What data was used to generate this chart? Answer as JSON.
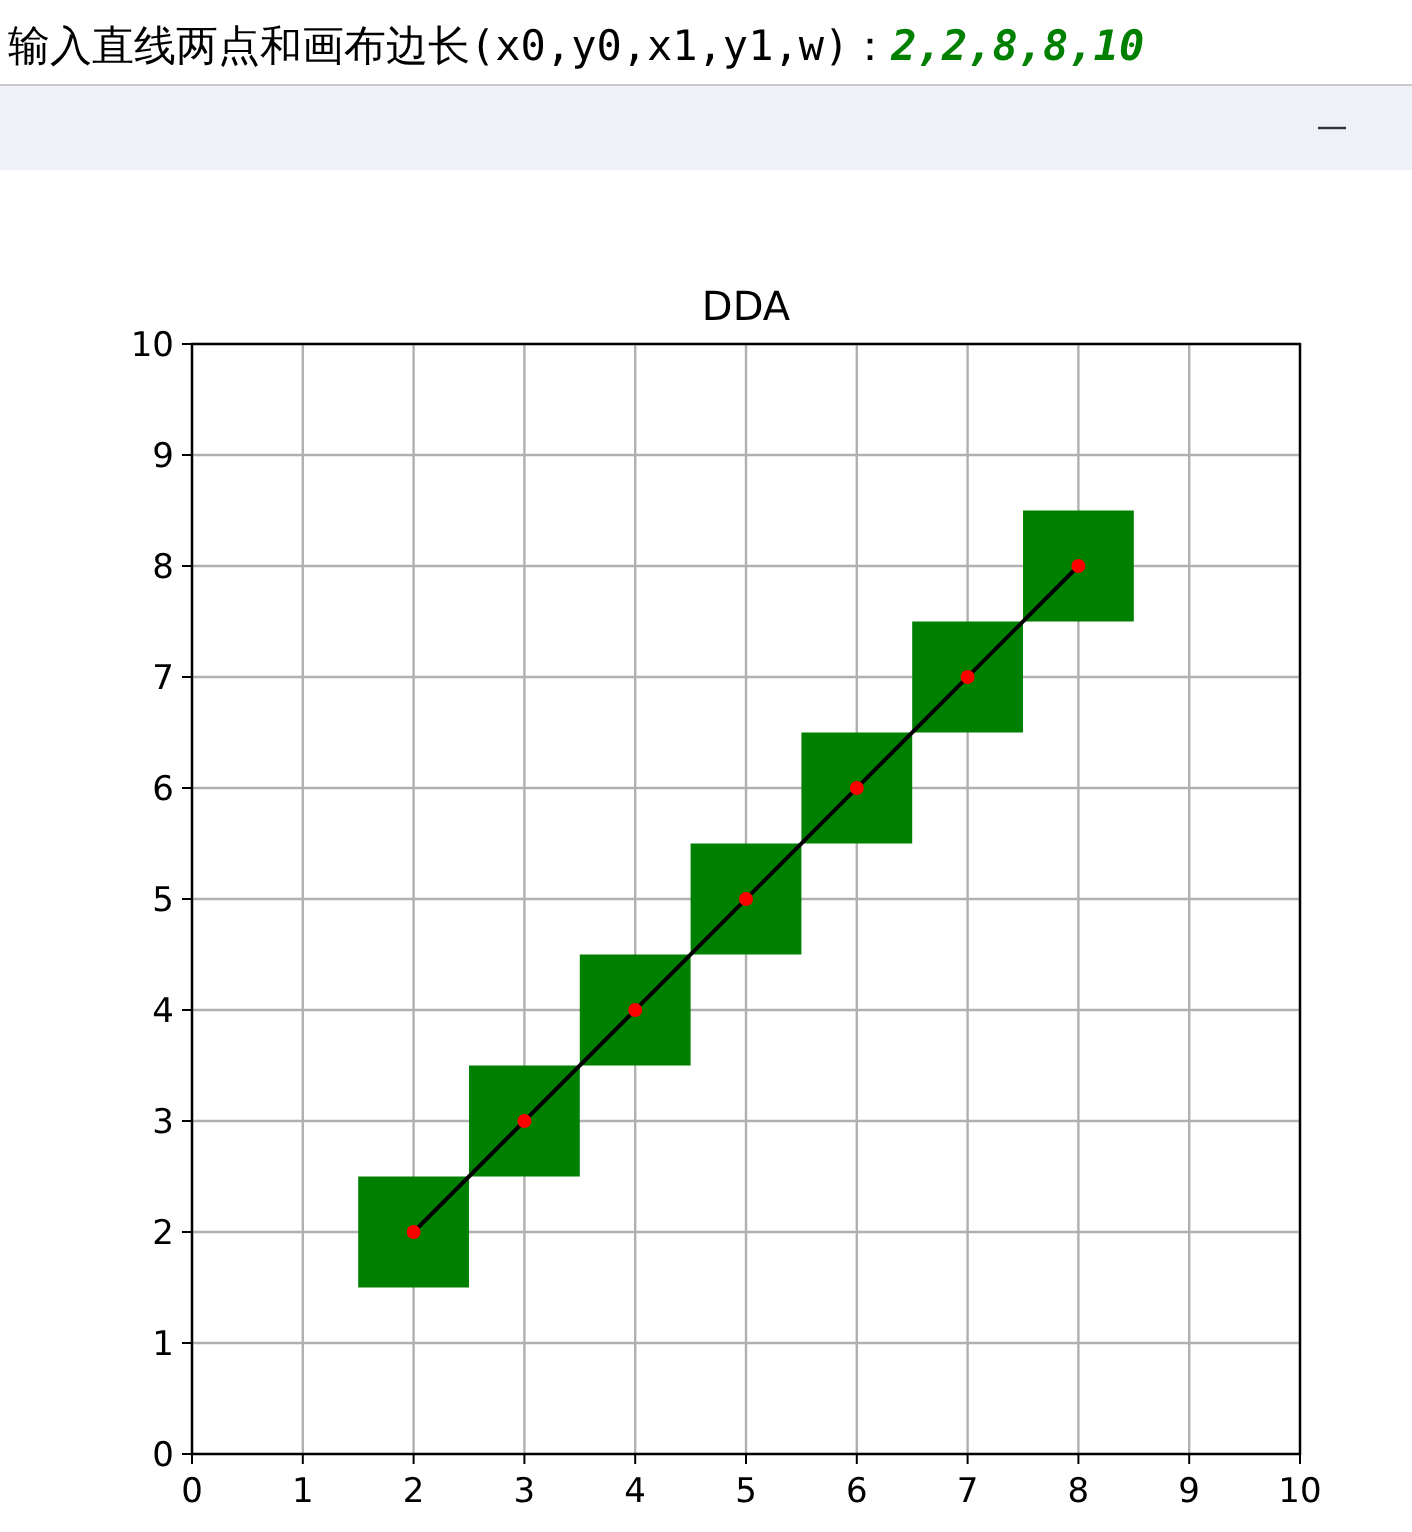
{
  "chart_data": {
    "type": "scatter",
    "title": "DDA",
    "annotations": [
      "输入直线两点和画布边长(x0,y0,x1,y1,w)：",
      "2,2,8,8,10"
    ],
    "xlim": [
      0,
      10
    ],
    "ylim": [
      0,
      10
    ],
    "xticks": [
      0,
      1,
      2,
      3,
      4,
      5,
      6,
      7,
      8,
      9,
      10
    ],
    "yticks": [
      0,
      1,
      2,
      3,
      4,
      5,
      6,
      7,
      8,
      9,
      10
    ],
    "grid": true,
    "series": [
      {
        "type": "bar",
        "color": "#008000",
        "x": [
          2,
          3,
          4,
          5,
          6,
          7,
          8
        ],
        "base": [
          1.5,
          2.5,
          3.5,
          4.5,
          5.5,
          6.5,
          7.5
        ],
        "values": [
          1,
          1,
          1,
          1,
          1,
          1,
          1
        ]
      },
      {
        "type": "line",
        "marker": "none",
        "line_style": "solid",
        "color": "#000000",
        "x": [
          2,
          8
        ],
        "values": [
          2,
          8
        ]
      },
      {
        "marker": "circle",
        "color": "#ff0000",
        "x": [
          2,
          3,
          4,
          5,
          6,
          7,
          8
        ],
        "values": [
          2,
          3,
          4,
          5,
          6,
          7,
          8
        ]
      }
    ]
  }
}
